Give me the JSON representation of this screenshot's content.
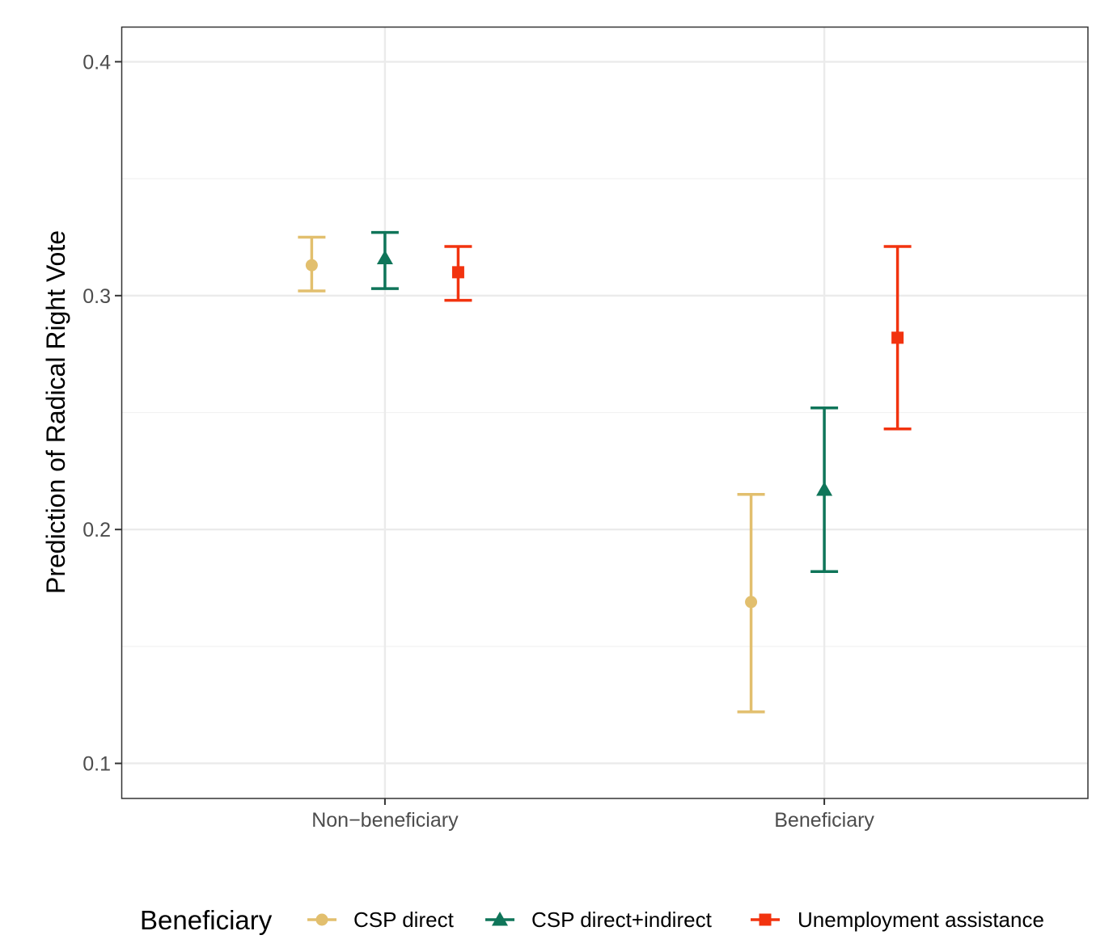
{
  "chart_data": {
    "type": "scatter",
    "subtype": "point-with-errorbars",
    "title": "",
    "xlabel": "",
    "ylabel": "Prediction of Radical Right Vote",
    "categories": [
      "Non−beneficiary",
      "Beneficiary"
    ],
    "ylim": [
      0.085,
      0.415
    ],
    "yticks": [
      0.1,
      0.2,
      0.3,
      0.4
    ],
    "ytick_labels": [
      "0.1",
      "0.2",
      "0.3",
      "0.4"
    ],
    "grid": true,
    "legend": {
      "title": "Beneficiary",
      "position": "bottom"
    },
    "series": [
      {
        "name": "CSP direct",
        "color": "#E2BF6E",
        "marker": "circle",
        "values": [
          0.313,
          0.169
        ],
        "lower": [
          0.302,
          0.122
        ],
        "upper": [
          0.325,
          0.215
        ]
      },
      {
        "name": "CSP direct+indirect",
        "color": "#0F7559",
        "marker": "triangle",
        "values": [
          0.316,
          0.217
        ],
        "lower": [
          0.303,
          0.182
        ],
        "upper": [
          0.327,
          0.252
        ]
      },
      {
        "name": "Unemployment assistance",
        "color": "#F2330F",
        "marker": "square",
        "values": [
          0.31,
          0.282
        ],
        "lower": [
          0.298,
          0.243
        ],
        "upper": [
          0.321,
          0.321
        ]
      }
    ]
  }
}
